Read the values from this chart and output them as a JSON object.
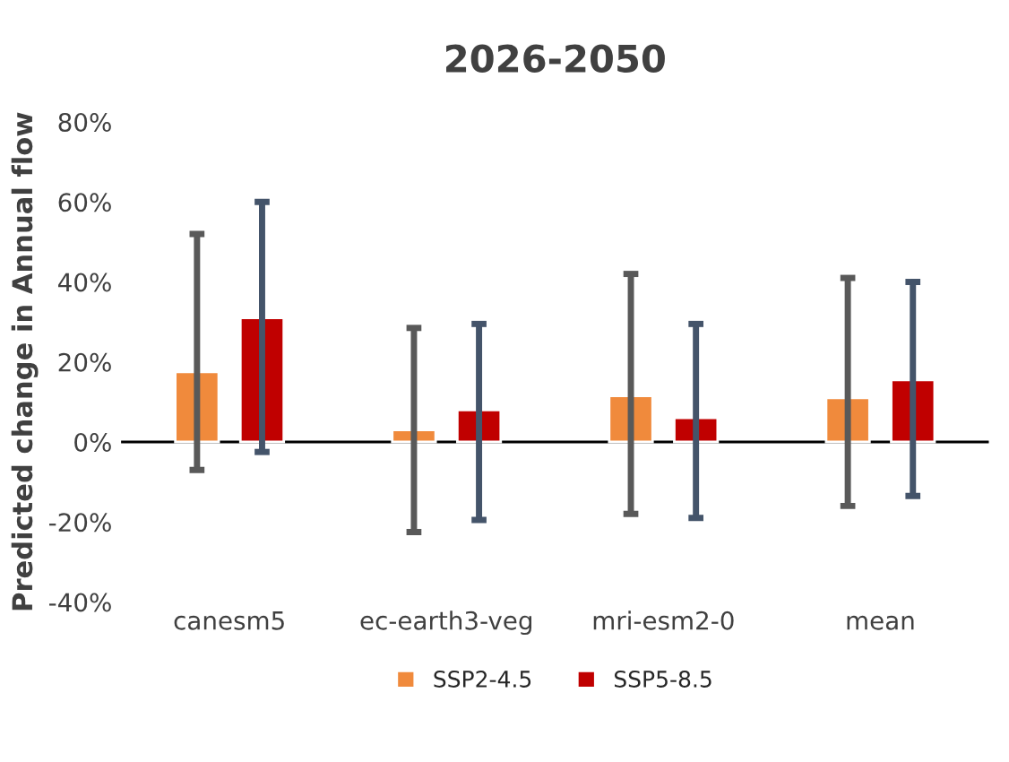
{
  "chart_data": {
    "type": "bar",
    "title": "2026-2050",
    "ylabel": "Predicted change in Annual flow",
    "categories": [
      "canesm5",
      "ec-earth3-veg",
      "mri-esm2-0",
      "mean"
    ],
    "series": [
      {
        "name": "SSP2-4.5",
        "color": "#f08a3c",
        "values": [
          17.5,
          3,
          11.5,
          11
        ],
        "errors": [
          [
            -7,
            52
          ],
          [
            -22.5,
            28.5
          ],
          [
            -18,
            42
          ],
          [
            -16,
            41
          ]
        ]
      },
      {
        "name": "SSP5-8.5",
        "color": "#c00000",
        "values": [
          31,
          8,
          6,
          15.5
        ],
        "errors": [
          [
            -2.5,
            60
          ],
          [
            -19.5,
            29.5
          ],
          [
            -19,
            29.5
          ],
          [
            -13.5,
            40
          ]
        ]
      }
    ],
    "ylim": [
      -40,
      80
    ],
    "yticks": [
      {
        "value": -40,
        "label": "-40%"
      },
      {
        "value": -20,
        "label": "-20%"
      },
      {
        "value": 0,
        "label": "0%"
      },
      {
        "value": 20,
        "label": "20%"
      },
      {
        "value": 40,
        "label": "40%"
      },
      {
        "value": 60,
        "label": "60%"
      },
      {
        "value": 80,
        "label": "80%"
      }
    ],
    "ref_lines": [
      {
        "axis": "y",
        "value": 0,
        "color": "#000000"
      }
    ],
    "legend": "bottom"
  }
}
